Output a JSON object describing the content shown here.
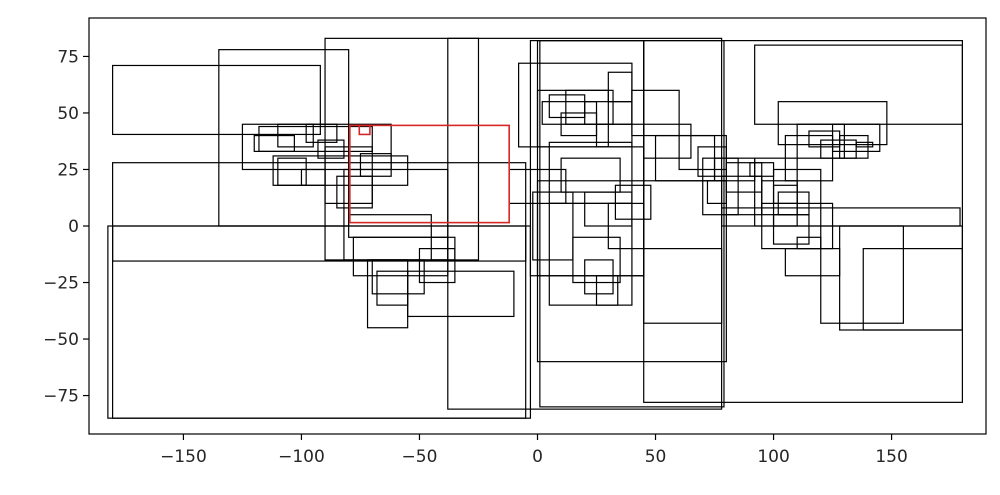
{
  "chart_data": {
    "type": "rectangles",
    "title": "",
    "xlabel": "",
    "ylabel": "",
    "xlim": [
      -190,
      190
    ],
    "ylim": [
      -92,
      92
    ],
    "xticks": [
      -150,
      -100,
      -50,
      0,
      50,
      100,
      150
    ],
    "yticks": [
      -75,
      -50,
      -25,
      0,
      25,
      50,
      75
    ],
    "xtick_labels": [
      "−150",
      "−100",
      "−50",
      "0",
      "50",
      "100",
      "150"
    ],
    "ytick_labels": [
      "−75",
      "−50",
      "−25",
      "0",
      "25",
      "50",
      "75"
    ],
    "grid": false,
    "colors": {
      "default": "#000000",
      "highlight": "#d62728"
    },
    "highlighted_boxes": [
      [
        -79.5,
        1.5,
        -12,
        44.5
      ],
      [
        -75.5,
        40.5,
        -71,
        44.5
      ]
    ],
    "boxes": [
      [
        -180,
        -85,
        -3,
        0
      ],
      [
        -182,
        -85,
        -5,
        0
      ],
      [
        -180,
        -15.5,
        -5,
        28
      ],
      [
        -180,
        40.5,
        -92,
        71
      ],
      [
        -135,
        0,
        -80,
        78
      ],
      [
        -90,
        -15,
        -25,
        83
      ],
      [
        -38,
        -81,
        78,
        83
      ],
      [
        1,
        -80,
        79,
        82
      ],
      [
        -3,
        -22,
        45,
        82
      ],
      [
        45,
        -78,
        180,
        82
      ],
      [
        0,
        -22,
        45,
        82
      ],
      [
        92,
        45,
        180,
        80
      ],
      [
        102,
        36,
        148,
        55
      ],
      [
        0,
        -60,
        80,
        20
      ],
      [
        78,
        0,
        179,
        8
      ],
      [
        128,
        -46,
        180,
        0
      ],
      [
        120,
        -43,
        155,
        0
      ],
      [
        138,
        -46,
        180,
        -10
      ],
      [
        -125,
        25,
        -62,
        45
      ],
      [
        -118,
        33,
        -70,
        44
      ],
      [
        -112,
        18,
        -55,
        31
      ],
      [
        -110,
        18,
        -98,
        30
      ],
      [
        -100,
        18,
        -90,
        25
      ],
      [
        -90,
        10,
        -70,
        35
      ],
      [
        -85,
        8,
        -70,
        22
      ],
      [
        -75,
        22,
        -62,
        32
      ],
      [
        -82,
        -15,
        -38,
        25
      ],
      [
        -80,
        -5,
        -45,
        5
      ],
      [
        -78,
        -22,
        -38,
        -5
      ],
      [
        -72,
        -45,
        -55,
        -15
      ],
      [
        -70,
        -30,
        -48,
        -15
      ],
      [
        -68,
        -35,
        -55,
        -20
      ],
      [
        -55,
        -40,
        -10,
        -20
      ],
      [
        -50,
        -25,
        -35,
        -10
      ],
      [
        -45,
        -15,
        -35,
        -5
      ],
      [
        -12,
        10,
        12,
        25
      ],
      [
        -2,
        -15,
        15,
        15
      ],
      [
        5,
        -35,
        40,
        10
      ],
      [
        15,
        -25,
        35,
        -5
      ],
      [
        20,
        -30,
        32,
        -15
      ],
      [
        25,
        -35,
        34,
        -22
      ],
      [
        5,
        10,
        40,
        37
      ],
      [
        10,
        15,
        35,
        30
      ],
      [
        20,
        0,
        40,
        15
      ],
      [
        30,
        -10,
        45,
        10
      ],
      [
        33,
        3,
        48,
        18
      ],
      [
        -8,
        35,
        40,
        72
      ],
      [
        0,
        35,
        30,
        60
      ],
      [
        2,
        45,
        25,
        55
      ],
      [
        5,
        48,
        20,
        58
      ],
      [
        10,
        40,
        25,
        50
      ],
      [
        12,
        45,
        32,
        60
      ],
      [
        20,
        45,
        40,
        55
      ],
      [
        25,
        35,
        45,
        45
      ],
      [
        30,
        55,
        40,
        68
      ],
      [
        40,
        40,
        60,
        60
      ],
      [
        45,
        30,
        65,
        45
      ],
      [
        50,
        20,
        75,
        40
      ],
      [
        60,
        25,
        80,
        40
      ],
      [
        68,
        22,
        80,
        35
      ],
      [
        70,
        5,
        85,
        30
      ],
      [
        72,
        10,
        80,
        20
      ],
      [
        75,
        20,
        92,
        30
      ],
      [
        80,
        15,
        95,
        28
      ],
      [
        90,
        22,
        100,
        28
      ],
      [
        92,
        0,
        110,
        30
      ],
      [
        95,
        5,
        110,
        20
      ],
      [
        100,
        10,
        110,
        18
      ],
      [
        100,
        0,
        120,
        25
      ],
      [
        102,
        5,
        115,
        15
      ],
      [
        105,
        20,
        125,
        40
      ],
      [
        110,
        30,
        130,
        45
      ],
      [
        115,
        35,
        128,
        42
      ],
      [
        120,
        30,
        135,
        38
      ],
      [
        125,
        33,
        145,
        45
      ],
      [
        128,
        30,
        140,
        40
      ],
      [
        135,
        35,
        142,
        37
      ],
      [
        95,
        -10,
        125,
        10
      ],
      [
        100,
        -8,
        115,
        5
      ],
      [
        110,
        -10,
        120,
        -5
      ],
      [
        105,
        -22,
        128,
        -10
      ],
      [
        45,
        -43,
        78,
        -10
      ],
      [
        78,
        5,
        95,
        22
      ],
      [
        -120,
        33,
        -103,
        40
      ],
      [
        -110,
        35,
        -95,
        45
      ],
      [
        -98,
        37,
        -85,
        45
      ],
      [
        -93,
        30,
        -82,
        38
      ]
    ]
  }
}
